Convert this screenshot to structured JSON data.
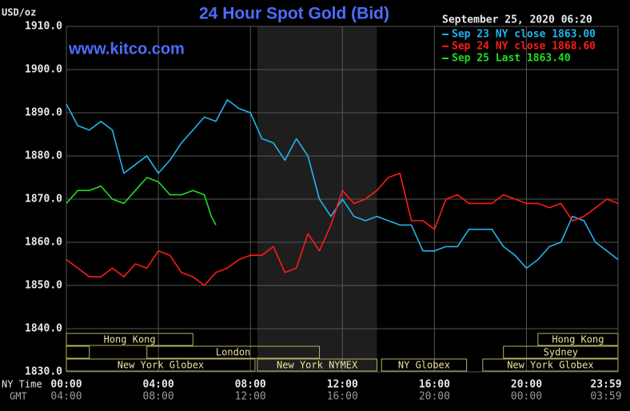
{
  "chart_data": {
    "type": "line",
    "title": "24 Hour Spot Gold (Bid)",
    "y_label": "USD/oz",
    "watermark": "www.kitco.com",
    "timestamp": "September 25, 2020 06:20",
    "x_label": "NY Time",
    "x2_label": "GMT",
    "xlim": [
      0,
      23.98
    ],
    "ylim": [
      1830,
      1910
    ],
    "grid": true,
    "xticks": [
      {
        "value": 0,
        "label": "00:00"
      },
      {
        "value": 4,
        "label": "04:00"
      },
      {
        "value": 8,
        "label": "08:00"
      },
      {
        "value": 12,
        "label": "12:00"
      },
      {
        "value": 16,
        "label": "16:00"
      },
      {
        "value": 20,
        "label": "20:00"
      },
      {
        "value": 23.98,
        "label": "23:59"
      }
    ],
    "x2ticks": [
      {
        "value": 0,
        "label": "04:00"
      },
      {
        "value": 4,
        "label": "08:00"
      },
      {
        "value": 8,
        "label": "12:00"
      },
      {
        "value": 12,
        "label": "16:00"
      },
      {
        "value": 16,
        "label": "20:00"
      },
      {
        "value": 20,
        "label": "00:00"
      },
      {
        "value": 23.98,
        "label": "03:59"
      }
    ],
    "yticks": [
      {
        "value": 1830,
        "label": "1830.0"
      },
      {
        "value": 1840,
        "label": "1840.0"
      },
      {
        "value": 1850,
        "label": "1850.0"
      },
      {
        "value": 1860,
        "label": "1860.0"
      },
      {
        "value": 1870,
        "label": "1870.0"
      },
      {
        "value": 1880,
        "label": "1880.0"
      },
      {
        "value": 1890,
        "label": "1890.0"
      },
      {
        "value": 1900,
        "label": "1900.0"
      },
      {
        "value": 1910,
        "label": "1910.0"
      }
    ],
    "shade": [
      8.3,
      13.5
    ],
    "series": [
      {
        "name": "Sep 23 NY close 1863.00",
        "color": "#22b4ee",
        "x": [
          0,
          0.5,
          1,
          1.5,
          2,
          2.5,
          3,
          3.5,
          4,
          4.5,
          5,
          5.5,
          6,
          6.5,
          7,
          7.5,
          8,
          8.5,
          9,
          9.5,
          10,
          10.5,
          11,
          11.5,
          12,
          12.5,
          13,
          13.5,
          14,
          14.5,
          15,
          15.5,
          16,
          16.5,
          17,
          17.5,
          18,
          18.5,
          19,
          19.5,
          20,
          20.5,
          21,
          21.5,
          22,
          22.5,
          23,
          23.5,
          23.98
        ],
        "values": [
          1892,
          1887,
          1886,
          1888,
          1886,
          1876,
          1878,
          1880,
          1876,
          1879,
          1883,
          1886,
          1889,
          1888,
          1893,
          1891,
          1890,
          1884,
          1883,
          1879,
          1884,
          1880,
          1870,
          1866,
          1870,
          1866,
          1865,
          1866,
          1865,
          1864,
          1864,
          1858,
          1858,
          1859,
          1859,
          1863,
          1863,
          1863,
          1859,
          1857,
          1854,
          1856,
          1859,
          1860,
          1866,
          1865,
          1860,
          1858,
          1856
        ]
      },
      {
        "name": "Sep 24 NY close 1868.60",
        "color": "#ff1a1a",
        "x": [
          0,
          0.5,
          1,
          1.5,
          2,
          2.5,
          3,
          3.5,
          4,
          4.5,
          5,
          5.5,
          6,
          6.5,
          7,
          7.5,
          8,
          8.5,
          9,
          9.5,
          10,
          10.5,
          11,
          11.5,
          12,
          12.5,
          13,
          13.5,
          14,
          14.5,
          15,
          15.5,
          16,
          16.5,
          17,
          17.5,
          18,
          18.5,
          19,
          19.5,
          20,
          20.5,
          21,
          21.5,
          22,
          22.5,
          23,
          23.5,
          23.98
        ],
        "values": [
          1856,
          1854,
          1852,
          1852,
          1854,
          1852,
          1855,
          1854,
          1858,
          1857,
          1853,
          1852,
          1850,
          1853,
          1854,
          1856,
          1857,
          1857,
          1859,
          1853,
          1854,
          1862,
          1858,
          1864,
          1872,
          1869,
          1870,
          1872,
          1875,
          1876,
          1865,
          1865,
          1863,
          1870,
          1871,
          1869,
          1869,
          1869,
          1871,
          1870,
          1869,
          1869,
          1868,
          1869,
          1865,
          1866,
          1868,
          1870,
          1869
        ]
      },
      {
        "name": "Sep 25 Last 1863.40",
        "color": "#22dd22",
        "x": [
          0,
          0.5,
          1,
          1.5,
          2,
          2.5,
          3,
          3.5,
          4,
          4.5,
          5,
          5.5,
          6,
          6.3,
          6.5
        ],
        "values": [
          1869,
          1872,
          1872,
          1873,
          1870,
          1869,
          1872,
          1875,
          1874,
          1871,
          1871,
          1872,
          1871,
          1866,
          1864
        ]
      }
    ],
    "sessions": [
      {
        "label": "Hong Kong",
        "row": 0,
        "start": 0,
        "end": 5.5
      },
      {
        "label": "Hong Kong",
        "row": 0,
        "start": 20.5,
        "end": 23.98
      },
      {
        "label": null,
        "row": 1,
        "start": 0,
        "end": 1
      },
      {
        "label": "London",
        "row": 1,
        "start": 3.5,
        "end": 11
      },
      {
        "label": "Sydney",
        "row": 1,
        "start": 19,
        "end": 23.98
      },
      {
        "label": "New York Globex",
        "row": 2,
        "start": 0,
        "end": 8.2
      },
      {
        "label": "New York NYMEX",
        "row": 2,
        "start": 8.3,
        "end": 13.5
      },
      {
        "label": "NY Globex",
        "row": 2,
        "start": 13.7,
        "end": 17.4
      },
      {
        "label": "New York Globex",
        "row": 2,
        "start": 18.1,
        "end": 23.98
      }
    ]
  }
}
